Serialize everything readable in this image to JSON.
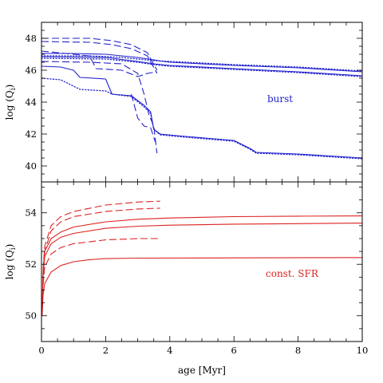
{
  "chart_data": [
    {
      "type": "line",
      "panel": "top",
      "ylabel": "log (Q_i)",
      "xlim": [
        0,
        10
      ],
      "ylim": [
        39,
        49
      ],
      "xticks": [
        0,
        2,
        4,
        6,
        8,
        10
      ],
      "yticks": [
        40,
        42,
        44,
        46,
        48
      ],
      "color": "#2222cc",
      "annotation": "burst",
      "series": [
        {
          "style": "solid",
          "points": [
            [
              0,
              47.05
            ],
            [
              1,
              47.05
            ],
            [
              2,
              47.0
            ],
            [
              3,
              46.8
            ],
            [
              3.5,
              46.65
            ],
            [
              3.8,
              46.55
            ],
            [
              4,
              46.5
            ],
            [
              6,
              46.3
            ],
            [
              8,
              46.15
            ],
            [
              10,
              45.9
            ]
          ]
        },
        {
          "style": "dotted",
          "points": [
            [
              0,
              46.9
            ],
            [
              1.5,
              46.9
            ],
            [
              2.5,
              46.8
            ],
            [
              3.5,
              46.6
            ],
            [
              4,
              46.55
            ],
            [
              6,
              46.35
            ],
            [
              8,
              46.2
            ],
            [
              10,
              45.95
            ]
          ]
        },
        {
          "style": "solid",
          "points": [
            [
              0,
              46.85
            ],
            [
              2,
              46.8
            ],
            [
              3,
              46.55
            ],
            [
              3.5,
              46.4
            ],
            [
              4,
              46.3
            ],
            [
              6,
              46.1
            ],
            [
              8,
              45.9
            ],
            [
              10,
              45.65
            ]
          ]
        },
        {
          "style": "dotted",
          "points": [
            [
              0,
              46.75
            ],
            [
              2,
              46.7
            ],
            [
              3,
              46.5
            ],
            [
              3.5,
              46.35
            ],
            [
              4,
              46.25
            ],
            [
              6,
              46.05
            ],
            [
              8,
              45.85
            ],
            [
              10,
              45.6
            ]
          ]
        },
        {
          "style": "dashed",
          "points": [
            [
              0,
              48.0
            ],
            [
              1.5,
              48.0
            ],
            [
              2.2,
              47.85
            ],
            [
              2.8,
              47.6
            ],
            [
              3.3,
              47.1
            ],
            [
              3.6,
              46.0
            ]
          ]
        },
        {
          "style": "dashed",
          "points": [
            [
              0,
              47.8
            ],
            [
              1.5,
              47.75
            ],
            [
              2.2,
              47.6
            ],
            [
              2.8,
              47.35
            ],
            [
              3.3,
              46.9
            ],
            [
              3.6,
              45.8
            ]
          ]
        },
        {
          "style": "dashed",
          "points": [
            [
              0,
              47.2
            ],
            [
              1.5,
              46.9
            ],
            [
              1.7,
              46.1
            ],
            [
              2.5,
              46.0
            ],
            [
              3.0,
              45.6
            ],
            [
              3.3,
              45.8
            ],
            [
              3.6,
              45.9
            ]
          ]
        },
        {
          "style": "solid",
          "points": [
            [
              0,
              46.25
            ],
            [
              0.6,
              46.2
            ],
            [
              1.0,
              46.0
            ],
            [
              1.2,
              45.55
            ],
            [
              2.0,
              45.45
            ],
            [
              2.2,
              44.5
            ],
            [
              2.8,
              44.4
            ],
            [
              3.2,
              43.8
            ],
            [
              3.4,
              43.4
            ],
            [
              3.5,
              42.3
            ],
            [
              3.7,
              42.0
            ],
            [
              4.5,
              41.85
            ],
            [
              6.0,
              41.6
            ],
            [
              6.5,
              41.1
            ],
            [
              6.7,
              40.85
            ],
            [
              8,
              40.75
            ],
            [
              10,
              40.5
            ]
          ]
        },
        {
          "style": "dotted",
          "points": [
            [
              0,
              45.5
            ],
            [
              0.6,
              45.4
            ],
            [
              1.0,
              45.0
            ],
            [
              1.2,
              44.8
            ],
            [
              2.0,
              44.7
            ],
            [
              2.2,
              44.5
            ],
            [
              2.8,
              44.35
            ],
            [
              3.2,
              43.7
            ],
            [
              3.4,
              43.3
            ],
            [
              3.5,
              42.3
            ],
            [
              3.7,
              41.95
            ],
            [
              4.5,
              41.8
            ],
            [
              6.0,
              41.55
            ],
            [
              6.5,
              41.05
            ],
            [
              6.7,
              40.8
            ],
            [
              8,
              40.7
            ],
            [
              10,
              40.45
            ]
          ]
        },
        {
          "style": "dashed",
          "points": [
            [
              0,
              46.55
            ],
            [
              1.5,
              46.5
            ],
            [
              2.5,
              46.4
            ],
            [
              3.0,
              45.8
            ],
            [
              3.2,
              44.5
            ],
            [
              3.35,
              43.2
            ],
            [
              3.5,
              42.5
            ],
            [
              3.6,
              40.8
            ]
          ]
        },
        {
          "style": "dashed",
          "points": [
            [
              2.8,
              44.5
            ],
            [
              3.0,
              43.0
            ],
            [
              3.2,
              42.5
            ],
            [
              3.4,
              42.4
            ],
            [
              3.55,
              41.5
            ]
          ]
        }
      ]
    },
    {
      "type": "line",
      "panel": "bottom",
      "xlabel": "age [Myr]",
      "ylabel": "log (Q_i)",
      "xlim": [
        0,
        10
      ],
      "ylim": [
        49,
        55.2
      ],
      "xticks": [
        0,
        2,
        4,
        6,
        8,
        10
      ],
      "yticks": [
        50,
        52,
        54
      ],
      "color": "#dd2222",
      "annotation": "const. SFR",
      "series": [
        {
          "style": "solid",
          "points": [
            [
              0.02,
              50.2
            ],
            [
              0.05,
              51.7
            ],
            [
              0.1,
              52.5
            ],
            [
              0.3,
              53.0
            ],
            [
              0.6,
              53.25
            ],
            [
              1,
              53.45
            ],
            [
              2,
              53.65
            ],
            [
              3,
              53.75
            ],
            [
              4,
              53.8
            ],
            [
              6,
              53.85
            ],
            [
              8,
              53.87
            ],
            [
              10,
              53.88
            ]
          ]
        },
        {
          "style": "solid",
          "points": [
            [
              0.02,
              50.1
            ],
            [
              0.05,
              51.5
            ],
            [
              0.1,
              52.3
            ],
            [
              0.3,
              52.8
            ],
            [
              0.6,
              53.05
            ],
            [
              1,
              53.2
            ],
            [
              2,
              53.4
            ],
            [
              3,
              53.48
            ],
            [
              4,
              53.52
            ],
            [
              6,
              53.56
            ],
            [
              8,
              53.58
            ],
            [
              10,
              53.6
            ]
          ]
        },
        {
          "style": "solid",
          "points": [
            [
              0.02,
              50.0
            ],
            [
              0.05,
              50.8
            ],
            [
              0.1,
              51.25
            ],
            [
              0.3,
              51.7
            ],
            [
              0.6,
              51.95
            ],
            [
              1,
              52.1
            ],
            [
              1.5,
              52.18
            ],
            [
              2,
              52.22
            ],
            [
              3,
              52.24
            ],
            [
              6,
              52.25
            ],
            [
              10,
              52.26
            ]
          ]
        },
        {
          "style": "dashed",
          "points": [
            [
              0.05,
              51.8
            ],
            [
              0.1,
              52.7
            ],
            [
              0.3,
              53.5
            ],
            [
              0.6,
              53.85
            ],
            [
              1,
              54.05
            ],
            [
              2,
              54.3
            ],
            [
              3,
              54.42
            ],
            [
              3.7,
              54.45
            ]
          ]
        },
        {
          "style": "dashed",
          "points": [
            [
              0.05,
              51.6
            ],
            [
              0.1,
              52.5
            ],
            [
              0.3,
              53.3
            ],
            [
              0.6,
              53.65
            ],
            [
              1,
              53.85
            ],
            [
              2,
              54.05
            ],
            [
              3,
              54.15
            ],
            [
              3.7,
              54.18
            ]
          ]
        },
        {
          "style": "dashed",
          "points": [
            [
              0.05,
              51.2
            ],
            [
              0.1,
              51.9
            ],
            [
              0.3,
              52.4
            ],
            [
              0.6,
              52.65
            ],
            [
              1,
              52.8
            ],
            [
              2,
              52.95
            ],
            [
              3,
              53.0
            ],
            [
              3.7,
              53.0
            ]
          ]
        }
      ]
    }
  ]
}
